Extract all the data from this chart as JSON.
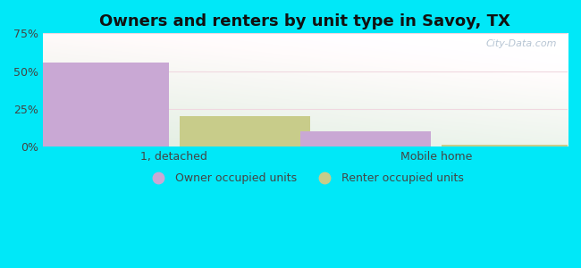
{
  "title": "Owners and renters by unit type in Savoy, TX",
  "categories": [
    "1, detached",
    "Mobile home"
  ],
  "owner_values": [
    55.5,
    10.0
  ],
  "renter_values": [
    20.0,
    1.2
  ],
  "owner_color": "#c9a8d4",
  "renter_color": "#c8cc8a",
  "bar_width": 0.25,
  "group_centers": [
    0.25,
    0.75
  ],
  "ylim": [
    0,
    75
  ],
  "yticks": [
    0,
    25,
    50,
    75
  ],
  "ytick_labels": [
    "0%",
    "25%",
    "50%",
    "75%"
  ],
  "background_outer": "#00e8f8",
  "background_inner_tl": "#e8f8ee",
  "background_inner_tr": "#f5fdf8",
  "background_inner_bl": "#c8ecd8",
  "background_inner_br": "#dff5e8",
  "title_fontsize": 13,
  "legend_labels": [
    "Owner occupied units",
    "Renter occupied units"
  ],
  "watermark": "City-Data.com",
  "grid_color": "#e0ece4",
  "text_color": "#444444"
}
